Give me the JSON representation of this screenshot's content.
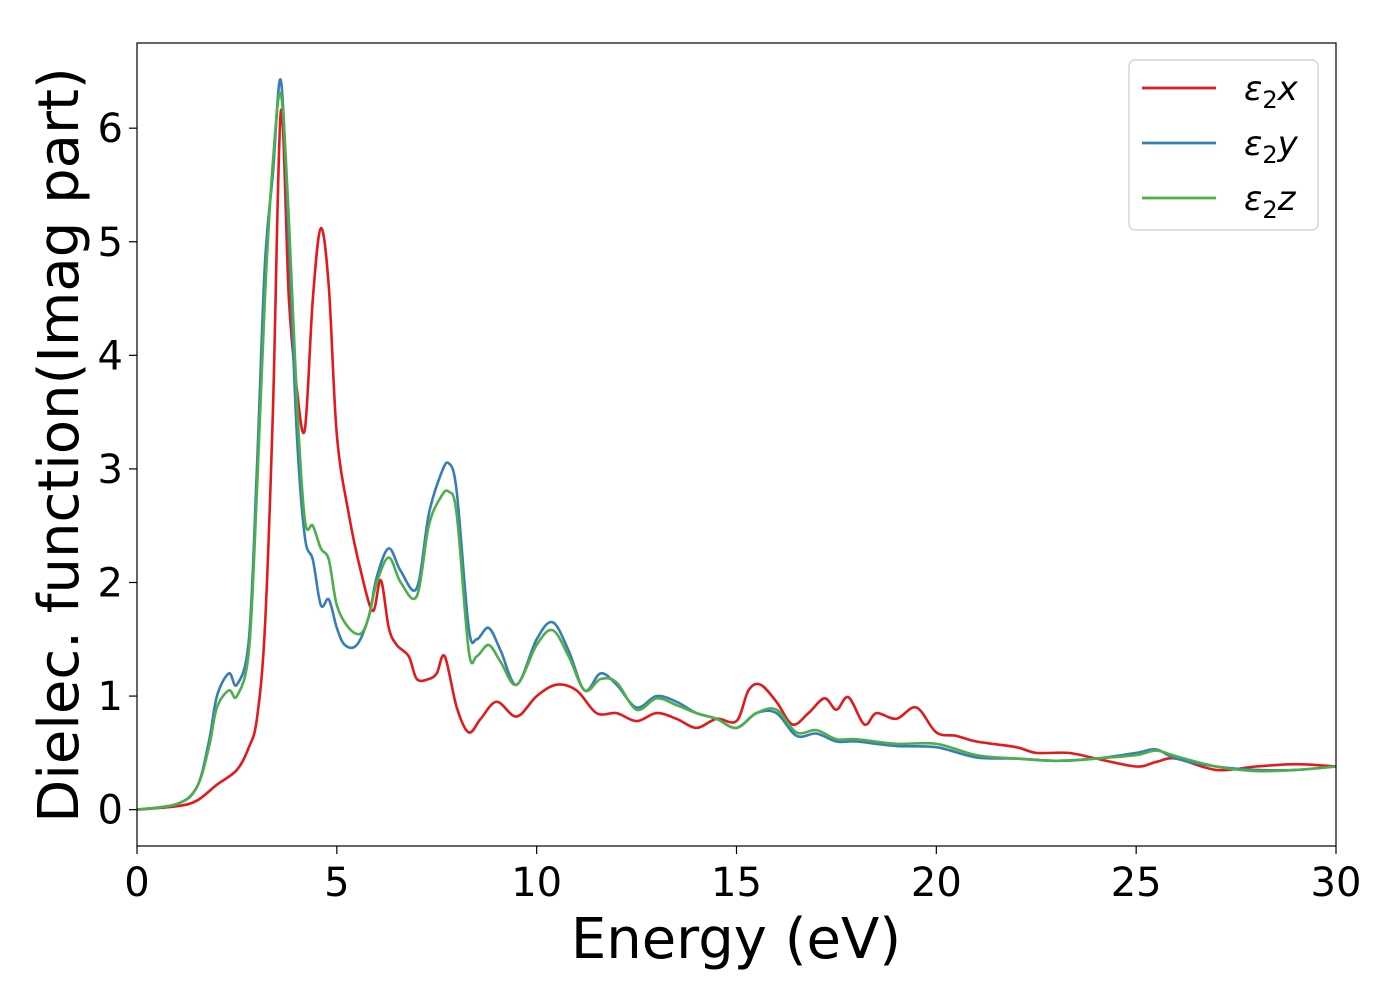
{
  "chart_data": {
    "type": "line",
    "xlabel": "Energy (eV)",
    "ylabel": "Dielec. function(Imag part)",
    "xlim": [
      0,
      30
    ],
    "ylim": [
      -0.32,
      6.75
    ],
    "xticks": [
      0,
      5,
      10,
      15,
      20,
      25,
      30
    ],
    "yticks": [
      0,
      1,
      2,
      3,
      4,
      5,
      6
    ],
    "grid": false,
    "legend_position": "top-right",
    "series": [
      {
        "name": "ε₂x",
        "legend": {
          "base": "ε",
          "sub": "2",
          "var": "x"
        },
        "color": "#e31a1c",
        "x": [
          0,
          1.0,
          1.5,
          2.0,
          2.5,
          2.8,
          3.0,
          3.2,
          3.4,
          3.6,
          3.8,
          4.0,
          4.2,
          4.4,
          4.6,
          4.8,
          5.0,
          5.3,
          5.6,
          5.9,
          6.1,
          6.3,
          6.5,
          6.8,
          7.0,
          7.3,
          7.5,
          7.7,
          8.0,
          8.3,
          8.6,
          9.0,
          9.5,
          10.0,
          10.5,
          11.0,
          11.5,
          12.0,
          12.5,
          13.0,
          13.5,
          14.0,
          14.5,
          15.0,
          15.3,
          15.6,
          16.0,
          16.4,
          16.8,
          17.2,
          17.5,
          17.8,
          18.2,
          18.5,
          19.0,
          19.5,
          20.0,
          20.5,
          21.0,
          22.0,
          22.5,
          23.3,
          24.0,
          25.0,
          25.5,
          26.0,
          27.0,
          28.0,
          29.0,
          30.0
        ],
        "y": [
          0.0,
          0.03,
          0.08,
          0.22,
          0.35,
          0.55,
          0.8,
          1.6,
          3.5,
          6.15,
          4.5,
          3.7,
          3.35,
          4.5,
          5.12,
          4.6,
          3.3,
          2.6,
          2.1,
          1.75,
          2.02,
          1.6,
          1.45,
          1.35,
          1.15,
          1.15,
          1.2,
          1.35,
          0.9,
          0.68,
          0.8,
          0.95,
          0.82,
          1.0,
          1.1,
          1.05,
          0.85,
          0.85,
          0.78,
          0.85,
          0.8,
          0.72,
          0.8,
          0.78,
          1.05,
          1.1,
          0.95,
          0.75,
          0.85,
          0.98,
          0.88,
          0.99,
          0.75,
          0.85,
          0.8,
          0.9,
          0.68,
          0.65,
          0.6,
          0.55,
          0.5,
          0.5,
          0.45,
          0.38,
          0.42,
          0.45,
          0.35,
          0.38,
          0.4,
          0.38
        ]
      },
      {
        "name": "ε₂y",
        "legend": {
          "base": "ε",
          "sub": "2",
          "var": "y"
        },
        "color": "#377eb8",
        "x": [
          0,
          1.0,
          1.5,
          1.8,
          2.0,
          2.3,
          2.5,
          2.8,
          3.0,
          3.2,
          3.4,
          3.6,
          3.8,
          4.0,
          4.2,
          4.4,
          4.6,
          4.8,
          5.0,
          5.2,
          5.5,
          5.8,
          6.0,
          6.3,
          6.6,
          7.0,
          7.3,
          7.6,
          7.8,
          8.0,
          8.3,
          8.5,
          8.8,
          9.1,
          9.5,
          10.0,
          10.4,
          10.8,
          11.2,
          11.6,
          12.0,
          12.5,
          13.0,
          13.5,
          14.0,
          14.5,
          15.0,
          15.5,
          16.0,
          16.5,
          17.0,
          17.5,
          18.0,
          19.0,
          20.0,
          21.0,
          22.0,
          23.0,
          24.0,
          25.0,
          25.5,
          26.0,
          27.0,
          28.0,
          29.0,
          30.0
        ],
        "y": [
          0.0,
          0.05,
          0.2,
          0.6,
          1.0,
          1.2,
          1.1,
          1.5,
          3.0,
          4.8,
          5.6,
          6.42,
          5.0,
          3.3,
          2.4,
          2.2,
          1.8,
          1.85,
          1.6,
          1.45,
          1.45,
          1.7,
          2.05,
          2.3,
          2.1,
          1.95,
          2.6,
          2.95,
          3.05,
          2.8,
          1.6,
          1.5,
          1.6,
          1.4,
          1.1,
          1.5,
          1.65,
          1.4,
          1.05,
          1.2,
          1.1,
          0.9,
          1.0,
          0.95,
          0.85,
          0.8,
          0.72,
          0.85,
          0.85,
          0.65,
          0.67,
          0.6,
          0.6,
          0.56,
          0.55,
          0.46,
          0.45,
          0.43,
          0.45,
          0.5,
          0.53,
          0.45,
          0.38,
          0.35,
          0.35,
          0.38
        ]
      },
      {
        "name": "ε₂z",
        "legend": {
          "base": "ε",
          "sub": "2",
          "var": "z"
        },
        "color": "#4daf4a",
        "x": [
          0,
          1.0,
          1.5,
          1.8,
          2.0,
          2.3,
          2.5,
          2.8,
          3.0,
          3.2,
          3.4,
          3.6,
          3.8,
          4.0,
          4.2,
          4.4,
          4.6,
          4.8,
          5.0,
          5.3,
          5.6,
          5.8,
          6.0,
          6.3,
          6.6,
          7.0,
          7.3,
          7.6,
          7.8,
          8.0,
          8.3,
          8.5,
          8.8,
          9.1,
          9.5,
          10.0,
          10.4,
          10.8,
          11.2,
          11.6,
          12.0,
          12.5,
          13.0,
          13.5,
          14.0,
          14.5,
          15.0,
          15.5,
          16.0,
          16.5,
          17.0,
          17.5,
          18.0,
          19.0,
          20.0,
          21.0,
          22.0,
          23.0,
          24.0,
          25.0,
          25.5,
          26.0,
          27.0,
          28.0,
          29.0,
          30.0
        ],
        "y": [
          0.0,
          0.05,
          0.2,
          0.55,
          0.9,
          1.05,
          1.0,
          1.4,
          2.8,
          4.5,
          5.7,
          6.3,
          5.2,
          3.6,
          2.55,
          2.5,
          2.3,
          2.2,
          1.8,
          1.6,
          1.55,
          1.7,
          2.0,
          2.22,
          2.0,
          1.88,
          2.5,
          2.75,
          2.8,
          2.6,
          1.4,
          1.35,
          1.45,
          1.3,
          1.1,
          1.45,
          1.58,
          1.35,
          1.05,
          1.15,
          1.12,
          0.88,
          0.98,
          0.92,
          0.85,
          0.8,
          0.72,
          0.85,
          0.88,
          0.68,
          0.7,
          0.62,
          0.62,
          0.58,
          0.58,
          0.48,
          0.45,
          0.43,
          0.45,
          0.48,
          0.52,
          0.47,
          0.38,
          0.34,
          0.35,
          0.38
        ]
      }
    ]
  }
}
